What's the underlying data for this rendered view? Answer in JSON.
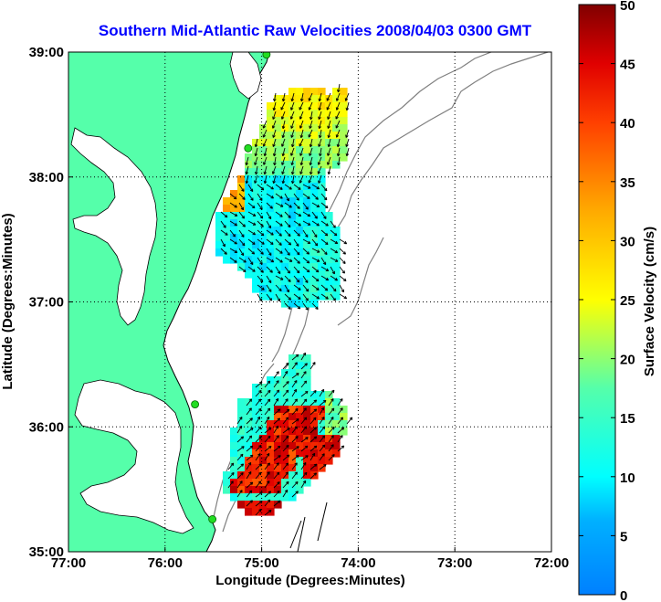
{
  "title": "Southern Mid-Atlantic Raw Velocities 2008/04/03 0300 GMT",
  "xlabel": "Longitude (Degrees:Minutes)",
  "ylabel": "Latitude (Degrees:Minutes)",
  "x_ticks": [
    "77:00",
    "76:00",
    "75:00",
    "74:00",
    "73:00",
    "72:00"
  ],
  "y_ticks": [
    "39:00",
    "38:00",
    "37:00",
    "36:00",
    "35:00"
  ],
  "colorbar": {
    "label": "Surface Velocity (cm/s)",
    "ticks": [
      "0",
      "5",
      "10",
      "15",
      "20",
      "25",
      "30",
      "35",
      "40",
      "45",
      "50"
    ],
    "min": 0,
    "max": 50
  },
  "colors": {
    "title": "#0000ff",
    "land": "#55ffaa",
    "coast": "#000000",
    "bathymetry": "#808080",
    "station": "#22dd22",
    "grid": "#000000"
  },
  "map_extent": {
    "lon_min": -77,
    "lon_max": -72,
    "lat_min": 35,
    "lat_max": 39
  },
  "colormap": "jet",
  "stations": [
    {
      "name": "station-1",
      "lon": -74.95,
      "lat": 38.98
    },
    {
      "name": "station-2",
      "lon": -75.14,
      "lat": 38.23
    },
    {
      "name": "station-3",
      "lon": -75.69,
      "lat": 36.18
    },
    {
      "name": "station-4",
      "lon": -75.51,
      "lat": 35.26
    }
  ]
}
